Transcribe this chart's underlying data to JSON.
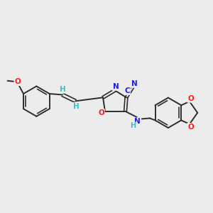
{
  "bg_color": "#ececec",
  "bond_color": "#2d2d2d",
  "atom_colors": {
    "N": "#1a1aff",
    "O": "#ff1a1a",
    "H": "#3dbfbf",
    "C": "#2d2d2d"
  },
  "figsize": [
    3.0,
    3.0
  ],
  "dpi": 100
}
